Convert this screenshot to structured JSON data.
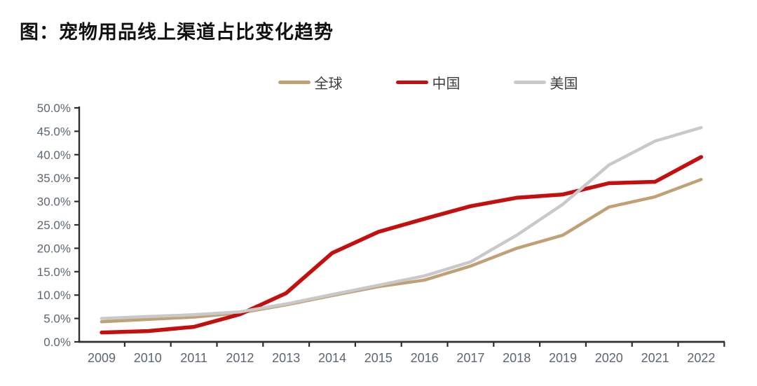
{
  "page": {
    "title": "图：宠物用品线上渠道占比变化趋势"
  },
  "chart_data": {
    "type": "line",
    "title": "宠物用品线上渠道占比变化趋势",
    "categories": [
      "2009",
      "2010",
      "2011",
      "2012",
      "2013",
      "2014",
      "2015",
      "2016",
      "2017",
      "2018",
      "2019",
      "2020",
      "2021",
      "2022"
    ],
    "series": [
      {
        "name": "全球",
        "color": "#c0a176",
        "values": [
          4.3,
          4.8,
          5.3,
          6.2,
          7.9,
          9.9,
          11.8,
          13.2,
          16.2,
          20.0,
          22.8,
          28.8,
          31.0,
          34.7
        ]
      },
      {
        "name": "中国",
        "color": "#c40f0e",
        "values": [
          2.0,
          2.3,
          3.2,
          5.9,
          10.4,
          19.0,
          23.5,
          26.3,
          29.0,
          30.8,
          31.5,
          33.9,
          34.2,
          39.5
        ]
      },
      {
        "name": "美国",
        "color": "#c9c9c9",
        "values": [
          5.0,
          5.4,
          5.8,
          6.4,
          8.1,
          10.1,
          12.1,
          14.1,
          17.1,
          22.8,
          29.4,
          37.8,
          42.9,
          45.8
        ]
      }
    ],
    "xlabel": "",
    "ylabel": "",
    "ylim": [
      0,
      50
    ],
    "ytick_step": 5,
    "ytick_labels": [
      "0.0%",
      "5.0%",
      "10.0%",
      "15.0%",
      "20.0%",
      "25.0%",
      "30.0%",
      "35.0%",
      "40.0%",
      "45.0%",
      "50.0%"
    ],
    "legend_position": "top-center",
    "grid": false,
    "axis_color": "#2f2f2f",
    "tick_label_color": "#5b6773"
  }
}
